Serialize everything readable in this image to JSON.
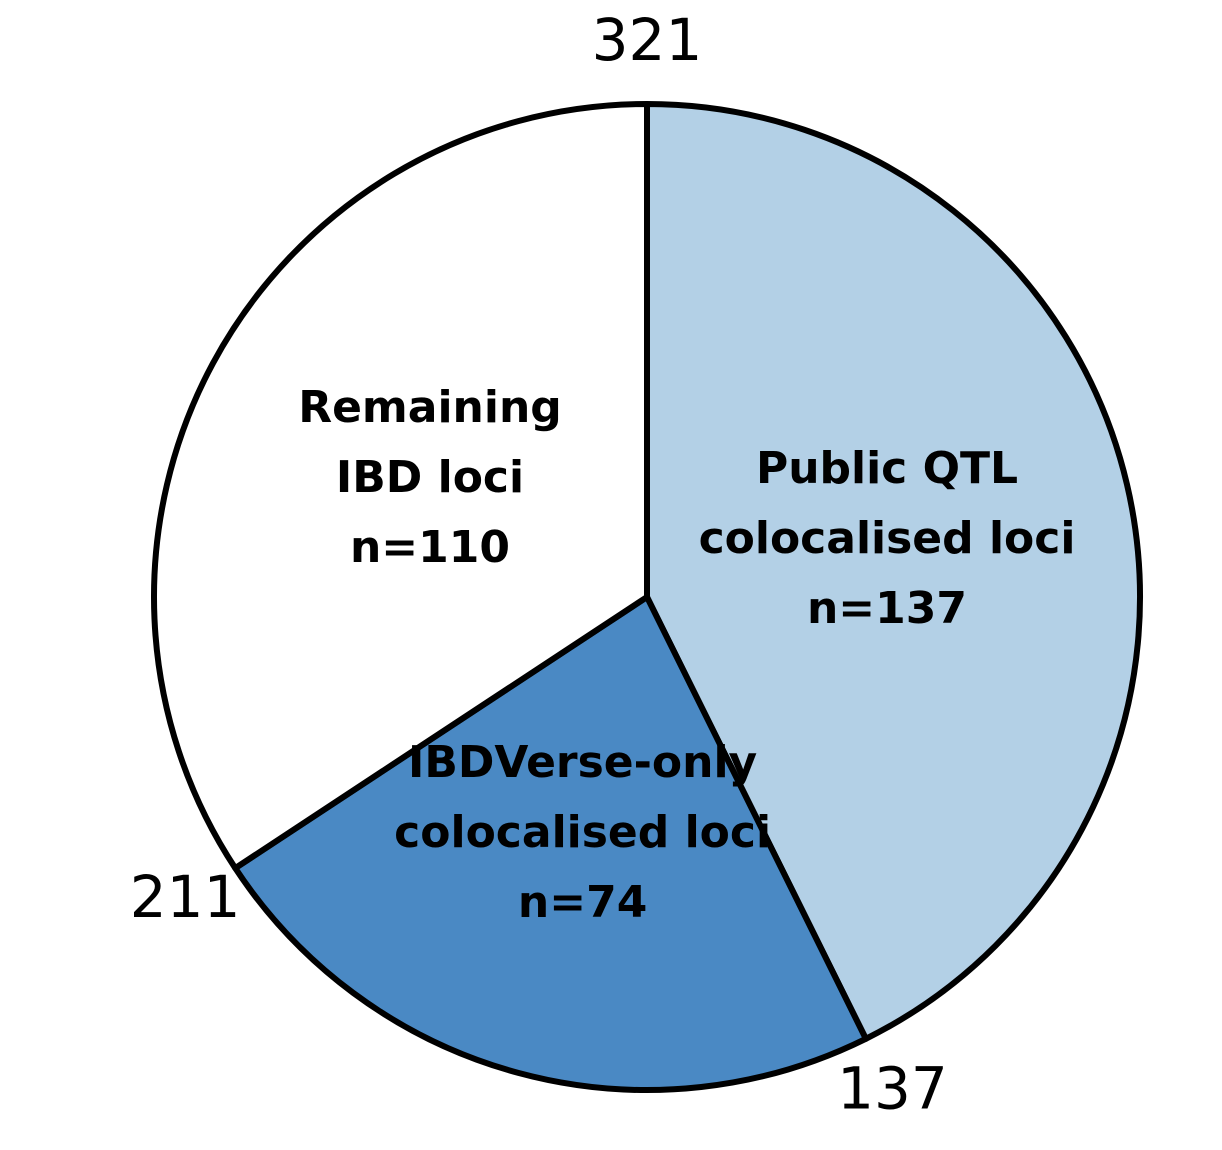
{
  "chart_data": {
    "type": "pie",
    "categories": [
      [
        "Public QTL",
        "colocalised loci",
        "n=137"
      ],
      [
        "IBDVerse-only",
        "colocalised loci",
        "n=74"
      ],
      [
        "Remaining",
        "IBD loci",
        "n=110"
      ]
    ],
    "values": [
      137,
      74,
      110
    ],
    "colors": [
      "#b3d0e6",
      "#4a89c4",
      "#ffffff"
    ],
    "ticks": [
      137,
      211,
      321
    ]
  }
}
